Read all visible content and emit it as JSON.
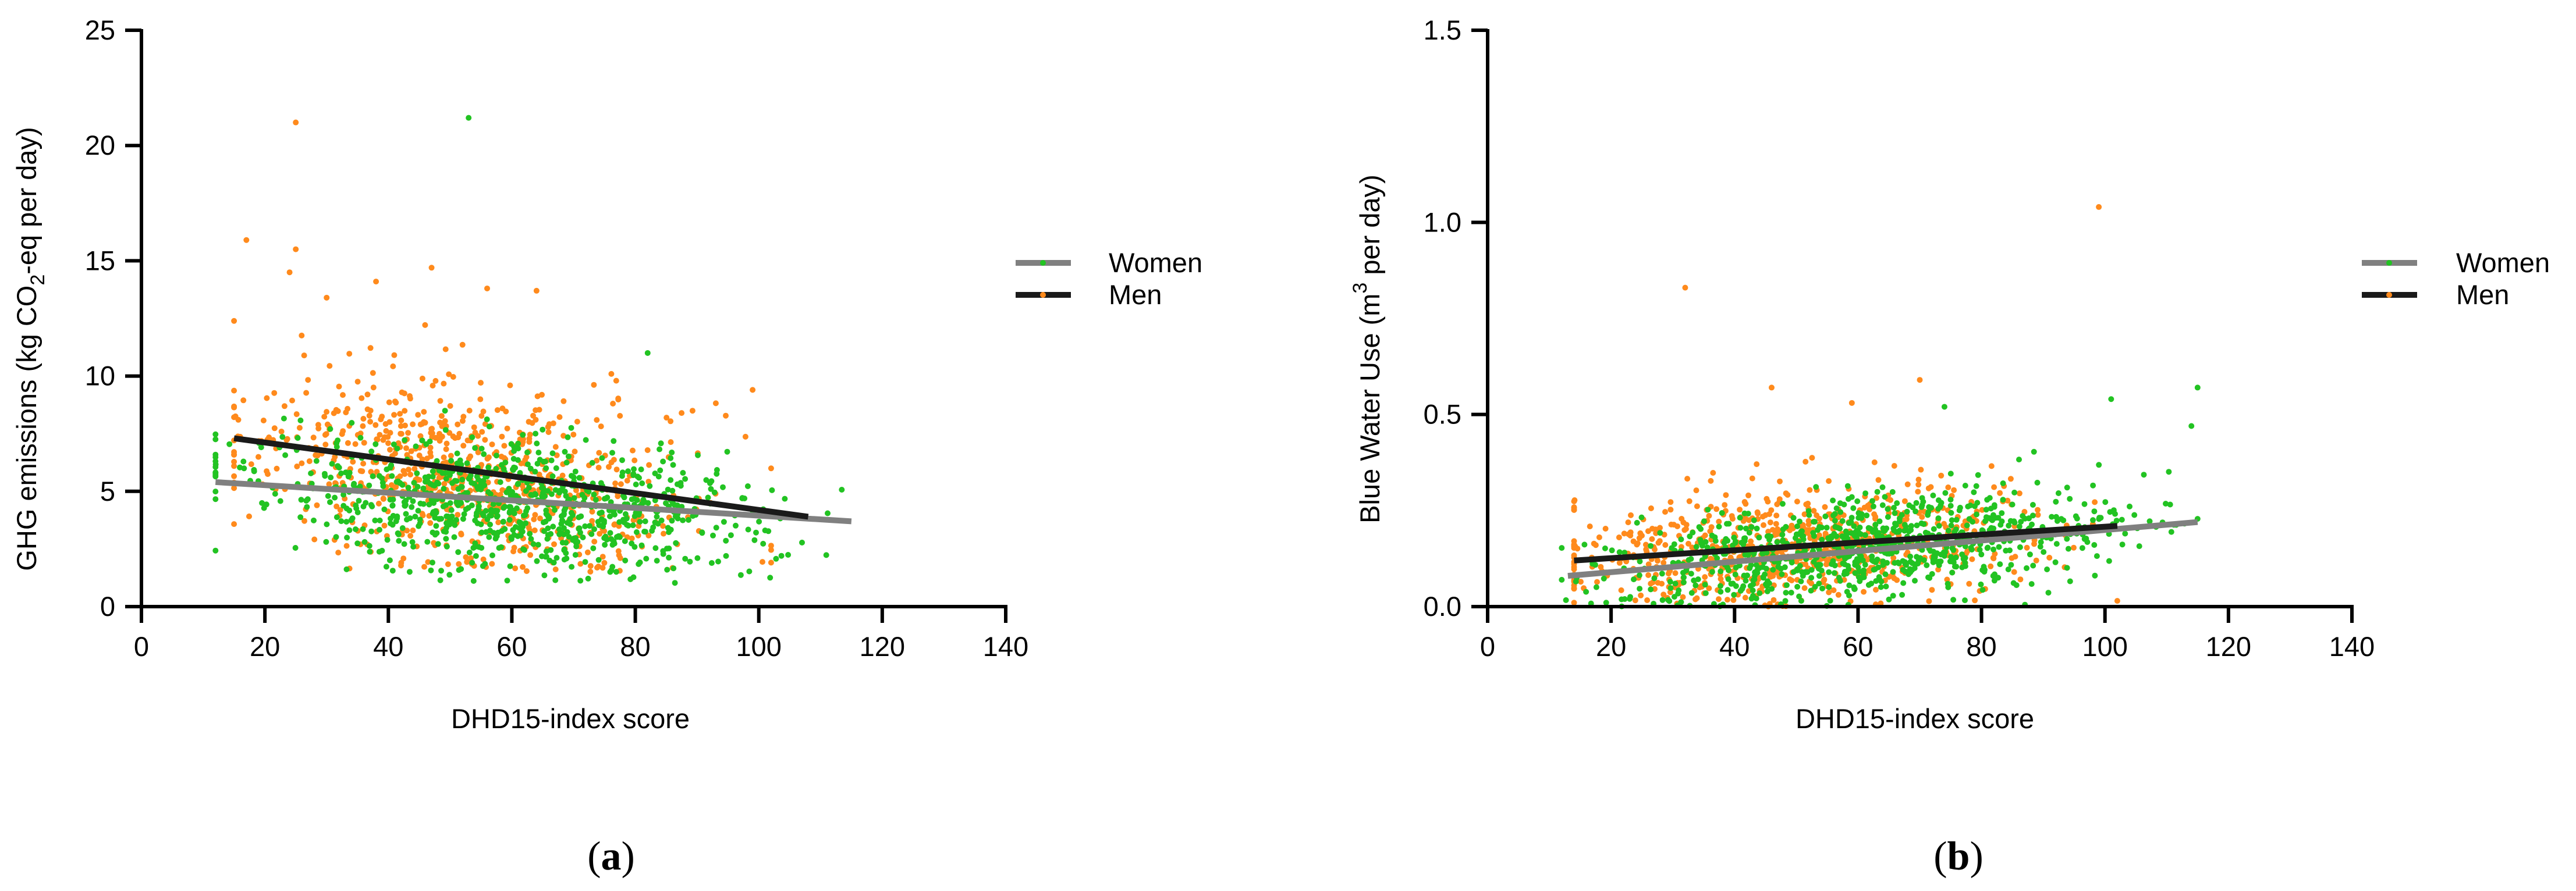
{
  "figure": {
    "captions": [
      "(a)",
      "(b)"
    ],
    "caption_parts": [
      {
        "open": "(",
        "letter": "a",
        "close": ")"
      },
      {
        "open": "(",
        "letter": "b",
        "close": ")"
      }
    ]
  },
  "colors": {
    "women_points": "#22c322",
    "men_points": "#ff8a1c",
    "women_line": "#808080",
    "men_line": "#1a1a1a",
    "axis": "#000000"
  },
  "chart_data": [
    {
      "type": "scatter",
      "title": "",
      "xlabel": "DHD15-index score",
      "ylabel_parts": {
        "before": "GHG emissions (kg CO",
        "sub": "2",
        "after": "-eq per day)"
      },
      "xlim": [
        0,
        140
      ],
      "ylim": [
        0,
        25
      ],
      "xticks": [
        0,
        20,
        40,
        60,
        80,
        100,
        120,
        140
      ],
      "yticks": [
        0,
        5,
        10,
        15,
        20,
        25
      ],
      "ytick_labels": [
        "0",
        "5",
        "10",
        "15",
        "20",
        "25"
      ],
      "legend": {
        "position": "right",
        "entries": [
          "Women",
          "Men"
        ]
      },
      "series": [
        {
          "name": "Women",
          "cloud": {
            "x_mean": 60,
            "x_sd": 20,
            "x_range": [
              12,
              115
            ],
            "y_intercept": 5.5,
            "y_slope": -0.017,
            "y_sd": 1.4,
            "y_min": 1.0,
            "count": 850
          },
          "extra_points": [
            {
              "x": 53,
              "y": 21.2
            },
            {
              "x": 82,
              "y": 11.0
            }
          ],
          "trend": {
            "x": [
              12,
              115
            ],
            "y": [
              5.4,
              3.7
            ]
          }
        },
        {
          "name": "Men",
          "cloud": {
            "x_mean": 52,
            "x_sd": 19,
            "x_range": [
              15,
              102
            ],
            "y_intercept": 7.7,
            "y_slope": -0.038,
            "y_sd": 2.0,
            "y_min": 1.5,
            "count": 750
          },
          "extra_points": [
            {
              "x": 25,
              "y": 21.0
            },
            {
              "x": 17,
              "y": 15.9
            },
            {
              "x": 25,
              "y": 15.5
            },
            {
              "x": 24,
              "y": 14.5
            },
            {
              "x": 47,
              "y": 14.7
            },
            {
              "x": 38,
              "y": 14.1
            },
            {
              "x": 56,
              "y": 13.8
            },
            {
              "x": 64,
              "y": 13.7
            },
            {
              "x": 30,
              "y": 13.4
            },
            {
              "x": 99,
              "y": 9.4
            }
          ],
          "trend": {
            "x": [
              15,
              108
            ],
            "y": [
              7.3,
              3.9
            ]
          }
        }
      ]
    },
    {
      "type": "scatter",
      "title": "",
      "xlabel": "DHD15-index score",
      "ylabel_parts": {
        "before": "Blue Water Use (m",
        "sup": "3",
        "after": " per day)"
      },
      "xlim": [
        0,
        140
      ],
      "ylim": [
        0,
        1.5
      ],
      "xticks": [
        0,
        20,
        40,
        60,
        80,
        100,
        120,
        140
      ],
      "yticks": [
        0,
        0.5,
        1.0,
        1.5
      ],
      "ytick_labels": [
        "0.0",
        "0.5",
        "1.0",
        "1.5"
      ],
      "legend": {
        "position": "right",
        "entries": [
          "Women",
          "Men"
        ]
      },
      "series": [
        {
          "name": "Women",
          "cloud": {
            "x_mean": 62,
            "x_sd": 20,
            "x_range": [
              12,
              115
            ],
            "y_intercept": 0.06,
            "y_slope": 0.0015,
            "y_sd": 0.065,
            "y_min": 0.0,
            "count": 850
          },
          "extra_points": [
            {
              "x": 115,
              "y": 0.57
            },
            {
              "x": 101,
              "y": 0.54
            },
            {
              "x": 114,
              "y": 0.47
            },
            {
              "x": 74,
              "y": 0.52
            }
          ],
          "trend": {
            "x": [
              13,
              115
            ],
            "y": [
              0.08,
              0.22
            ]
          }
        },
        {
          "name": "Men",
          "cloud": {
            "x_mean": 50,
            "x_sd": 19,
            "x_range": [
              14,
              102
            ],
            "y_intercept": 0.1,
            "y_slope": 0.0011,
            "y_sd": 0.075,
            "y_min": 0.0,
            "count": 750
          },
          "extra_points": [
            {
              "x": 32,
              "y": 0.83
            },
            {
              "x": 99,
              "y": 1.04
            },
            {
              "x": 70,
              "y": 0.59
            },
            {
              "x": 46,
              "y": 0.57
            },
            {
              "x": 59,
              "y": 0.53
            }
          ],
          "trend": {
            "x": [
              14,
              102
            ],
            "y": [
              0.12,
              0.21
            ]
          }
        }
      ]
    }
  ]
}
